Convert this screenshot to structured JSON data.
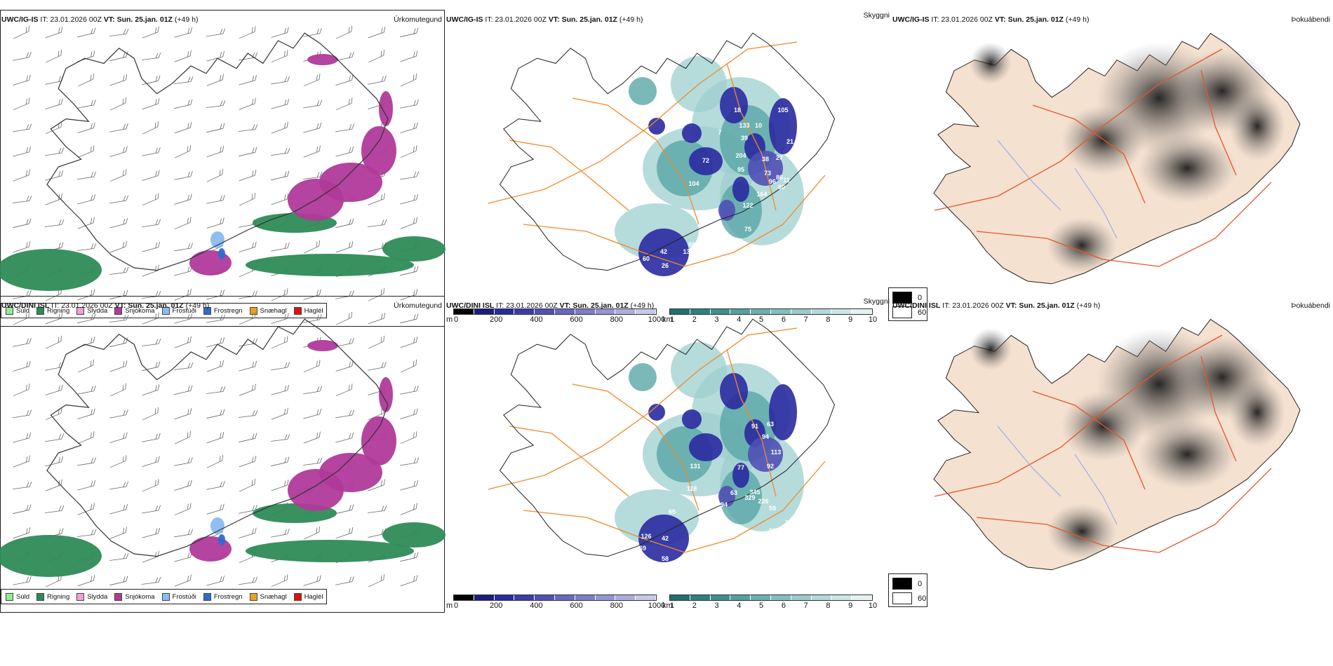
{
  "rows": [
    {
      "model": "UWC/IG-IS",
      "panel1": {
        "it_label": "IT:",
        "it": "23.01.2026 00Z",
        "vt_label": "VT:",
        "vt": "Sun. 25.jan. 01Z",
        "lead": "(+49 h)",
        "name": "Úrkomutegund"
      },
      "panel2": {
        "it_label": "IT:",
        "it": "23.01.2026 00Z",
        "vt_label": "VT:",
        "vt": "Sun. 25.jan. 01Z",
        "lead": "(+49 h)",
        "name": "Skyggni"
      },
      "panel3": {
        "it_label": "IT:",
        "it": "23.01.2026 00Z",
        "vt_label": "VT:",
        "vt": "Sun. 25.jan. 01Z",
        "lead": "(+49 h)",
        "name": "Þokuábendi"
      },
      "cloud_labels": [
        "42",
        "60",
        "26",
        "136",
        "88",
        "72",
        "104",
        "95",
        "39",
        "7",
        "18",
        "133",
        "10",
        "105",
        "21",
        "27",
        "204",
        "38",
        "86",
        "96",
        "11",
        "73",
        "164",
        "122",
        "75",
        "60"
      ]
    },
    {
      "model": "UWC/DINI ISL",
      "panel1": {
        "it_label": "IT:",
        "it": "23.01.2026 00Z",
        "vt_label": "VT:",
        "vt": "Sun. 25.jan. 01Z",
        "lead": "(+49 h)",
        "name": "Úrkomutegund"
      },
      "panel2": {
        "it_label": "IT:",
        "it": "23.01.2026 00Z",
        "vt_label": "VT:",
        "vt": "Sun. 25.jan. 01Z",
        "lead": "(+49 h)",
        "name": "Skyggni"
      },
      "panel3": {
        "it_label": "IT:",
        "it": "23.01.2026 00Z",
        "vt_label": "VT:",
        "vt": "Sun. 25.jan. 01Z",
        "lead": "(+49 h)",
        "name": "Þokuábendi"
      },
      "cloud_labels": [
        "42",
        "126",
        "69",
        "58",
        "65",
        "131",
        "118",
        "94",
        "63",
        "77",
        "91",
        "94",
        "113",
        "92",
        "345",
        "329",
        "226",
        "59",
        "110",
        "86",
        "90",
        "122",
        "61",
        "63"
      ]
    }
  ],
  "precip_legend": [
    {
      "label": "Súld",
      "color": "#90ee90"
    },
    {
      "label": "Rigning",
      "color": "#2e8b57"
    },
    {
      "label": "Slydda",
      "color": "#f0a0d8"
    },
    {
      "label": "Snjókoma",
      "color": "#b03a9a"
    },
    {
      "label": "Frostúði",
      "color": "#87bdf0"
    },
    {
      "label": "Frostregn",
      "color": "#2f6ccf"
    },
    {
      "label": "Snæhagl",
      "color": "#f0a020"
    },
    {
      "label": "Haglél",
      "color": "#e01010"
    }
  ],
  "ceiling_bar": {
    "unit": "m",
    "ticks": [
      "0",
      "200",
      "400",
      "600",
      "800",
      "1000"
    ],
    "colors": [
      "#000000",
      "#1b1b80",
      "#2a2aa0",
      "#3b3bab",
      "#5050b5",
      "#6868bf",
      "#7d7dc8",
      "#9595d3",
      "#adaddd",
      "#c8c8e8"
    ]
  },
  "vis_bar": {
    "unit": "km",
    "ticks": [
      "1",
      "2",
      "3",
      "4",
      "5",
      "6",
      "7",
      "8",
      "9",
      "10"
    ],
    "colors": [
      "#1f7070",
      "#2e8080",
      "#3f8f8f",
      "#55a0a0",
      "#6bb0b0",
      "#82bfbf",
      "#9acccc",
      "#b3d9d9",
      "#cce6e6",
      "#e6f2f2"
    ]
  },
  "fog_legend": [
    {
      "label": "0",
      "color": "#000000"
    },
    {
      "label": "60",
      "color": "#ffffff"
    }
  ],
  "colors": {
    "road": "#f08a2a",
    "road_fog": "#e8552a",
    "land_fog": "#f5e1d0",
    "coast": "#111111",
    "snow": "#b03a9a",
    "rain": "#2e8b57"
  }
}
